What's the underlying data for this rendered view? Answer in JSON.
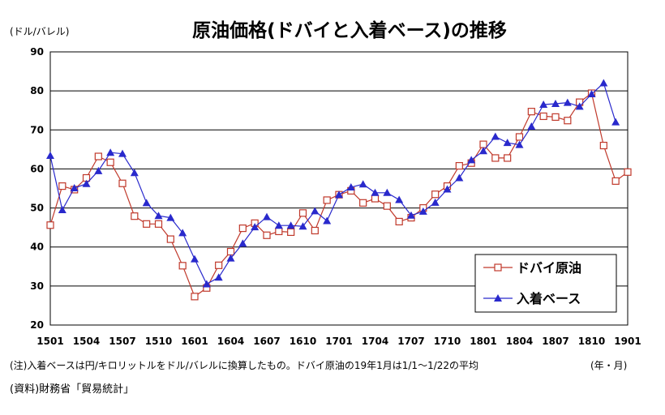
{
  "chart_data": {
    "type": "line",
    "title": "原油価格(ドバイと入着ベース)の推移",
    "ylabel": "(ドル/バレル)",
    "xlabel": "(年・月)",
    "ylim": [
      20,
      90
    ],
    "yticks": [
      "20",
      "30",
      "40",
      "50",
      "60",
      "70",
      "80",
      "90"
    ],
    "xticks": [
      {
        "label": "1501",
        "index": 0
      },
      {
        "label": "1504",
        "index": 3
      },
      {
        "label": "1507",
        "index": 6
      },
      {
        "label": "1510",
        "index": 9
      },
      {
        "label": "1601",
        "index": 12
      },
      {
        "label": "1604",
        "index": 15
      },
      {
        "label": "1607",
        "index": 18
      },
      {
        "label": "1610",
        "index": 21
      },
      {
        "label": "1701",
        "index": 24
      },
      {
        "label": "1704",
        "index": 27
      },
      {
        "label": "1707",
        "index": 30
      },
      {
        "label": "1710",
        "index": 33
      },
      {
        "label": "1801",
        "index": 36
      },
      {
        "label": "1804",
        "index": 39
      },
      {
        "label": "1807",
        "index": 42
      },
      {
        "label": "1810",
        "index": 45
      },
      {
        "label": "1901",
        "index": 48
      }
    ],
    "grid": true,
    "legend": "bottom-right",
    "series": [
      {
        "name": "ドバイ原油",
        "color": "#c0392b",
        "marker": "square",
        "values": [
          45.6,
          55.6,
          54.7,
          57.7,
          63.2,
          61.7,
          56.3,
          47.9,
          45.9,
          45.9,
          42.0,
          35.2,
          27.3,
          29.5,
          35.3,
          38.8,
          44.8,
          46.1,
          43.0,
          44.0,
          43.8,
          48.7,
          44.2,
          52.0,
          53.4,
          54.4,
          51.3,
          52.4,
          50.5,
          46.5,
          47.5,
          50.0,
          53.5,
          55.6,
          60.8,
          61.5,
          66.3,
          62.8,
          62.8,
          68.2,
          74.7,
          73.5,
          73.3,
          72.4,
          77.1,
          79.4,
          66.0,
          56.9,
          59.2
        ]
      },
      {
        "name": "入着ベース",
        "color": "#2929cc",
        "marker": "triangle",
        "values": [
          63.4,
          49.5,
          55.1,
          56.2,
          59.5,
          64.2,
          63.9,
          59.0,
          51.3,
          48.0,
          47.5,
          43.6,
          36.9,
          30.5,
          32.2,
          37.1,
          40.9,
          45.1,
          47.7,
          45.5,
          45.5,
          45.3,
          49.2,
          46.7,
          53.4,
          55.3,
          56.1,
          53.9,
          53.9,
          52.1,
          48.1,
          49.1,
          51.4,
          54.8,
          57.7,
          62.3,
          64.6,
          68.3,
          66.7,
          66.2,
          70.9,
          76.5,
          76.7,
          77.0,
          76.0,
          79.2,
          82.0,
          72.0
        ]
      }
    ]
  },
  "note": "(注)入着ベースは円/キロリットルをドル/バレルに換算したもの。ドバイ原油の19年1月は1/1～1/22の平均",
  "source": "(資料)財務省「貿易統計」"
}
